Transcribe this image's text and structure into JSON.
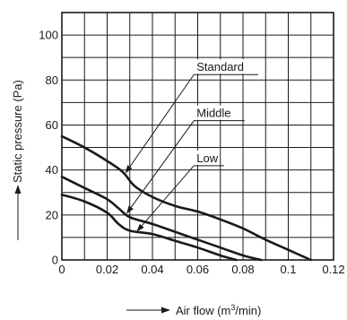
{
  "chart_data": {
    "type": "line",
    "xlabel_prefix": "Air flow (m",
    "xlabel_sup": "3",
    "xlabel_suffix": "/min)",
    "ylabel": "Static pressure (Pa)",
    "xlim": [
      0,
      0.12
    ],
    "ylim": [
      0,
      110
    ],
    "x_ticks": [
      0,
      0.02,
      0.04,
      0.06,
      0.08,
      0.1,
      0.12
    ],
    "x_tick_labels": [
      "0",
      "0.02",
      "0.04",
      "0.06",
      "0.08",
      "0.1",
      "0.12"
    ],
    "y_ticks": [
      0,
      20,
      40,
      60,
      80,
      100
    ],
    "y_tick_labels": [
      "0",
      "20",
      "40",
      "60",
      "80",
      "100"
    ],
    "grid": true,
    "series": [
      {
        "name": "Standard",
        "x": [
          0,
          0.01,
          0.02,
          0.027,
          0.032,
          0.04,
          0.05,
          0.06,
          0.07,
          0.08,
          0.09,
          0.1,
          0.11
        ],
        "y": [
          55,
          50,
          44,
          39,
          33,
          28,
          24,
          21.5,
          18,
          14,
          9,
          4.5,
          0
        ]
      },
      {
        "name": "Middle",
        "x": [
          0,
          0.01,
          0.02,
          0.025,
          0.03,
          0.04,
          0.05,
          0.06,
          0.07,
          0.08,
          0.088
        ],
        "y": [
          37,
          32,
          27,
          23,
          19,
          16,
          12.5,
          9,
          5.5,
          2,
          0
        ]
      },
      {
        "name": "Low",
        "x": [
          0,
          0.01,
          0.02,
          0.025,
          0.03,
          0.04,
          0.05,
          0.06,
          0.07,
          0.077
        ],
        "y": [
          29,
          26,
          21,
          16,
          13,
          11.5,
          8.5,
          5.5,
          2,
          0
        ]
      }
    ],
    "callouts": [
      {
        "series": "Standard",
        "label_x": 0.0595,
        "label_y": 84,
        "arrow_x": 0.028,
        "arrow_y": 38.5
      },
      {
        "series": "Middle",
        "label_x": 0.0595,
        "label_y": 63.5,
        "arrow_x": 0.0285,
        "arrow_y": 20.5
      },
      {
        "series": "Low",
        "label_x": 0.0595,
        "label_y": 43.5,
        "arrow_x": 0.033,
        "arrow_y": 12.5
      }
    ]
  }
}
